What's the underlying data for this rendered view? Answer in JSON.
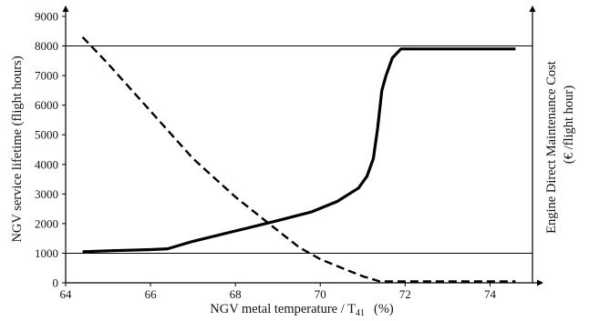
{
  "chart_data": {
    "type": "line",
    "xlabel": "NGV metal temperature / T",
    "xlabel_sub": "41",
    "xlabel_unit": "(%)",
    "ylabel": "NGV service lifetime   (flight hours)",
    "y2label_line1": "Engine Direct Maintenance Cost",
    "y2label_line2": "(€ /flight hour)",
    "xlim": [
      64,
      75
    ],
    "ylim": [
      0,
      9000
    ],
    "x_ticks": [
      "64",
      "66",
      "68",
      "70",
      "72",
      "74"
    ],
    "y_ticks": [
      "0",
      "1000",
      "2000",
      "3000",
      "4000",
      "5000",
      "6000",
      "7000",
      "8000",
      "9000"
    ],
    "reference_lines": [
      1000,
      8000
    ],
    "grid": false,
    "series": [
      {
        "style": "solid",
        "x": [
          64.4,
          65.0,
          66.0,
          66.4,
          67.0,
          68.0,
          69.0,
          69.8,
          70.4,
          70.9,
          71.1,
          71.25,
          71.35,
          71.45,
          71.55,
          71.7,
          71.9,
          72.1,
          73.0,
          74.6
        ],
        "y": [
          1050,
          1080,
          1120,
          1150,
          1400,
          1750,
          2100,
          2400,
          2750,
          3200,
          3600,
          4200,
          5200,
          6500,
          7000,
          7600,
          7900,
          7900,
          7900,
          7900
        ]
      },
      {
        "style": "dashed",
        "x": [
          64.4,
          65.0,
          66.0,
          67.0,
          68.0,
          68.7,
          69.5,
          70.0,
          70.6,
          71.0,
          71.4,
          72.0,
          73.0,
          74.6
        ],
        "y": [
          8300,
          7400,
          5800,
          4200,
          2900,
          2100,
          1200,
          800,
          450,
          220,
          50,
          50,
          50,
          50
        ]
      }
    ]
  }
}
